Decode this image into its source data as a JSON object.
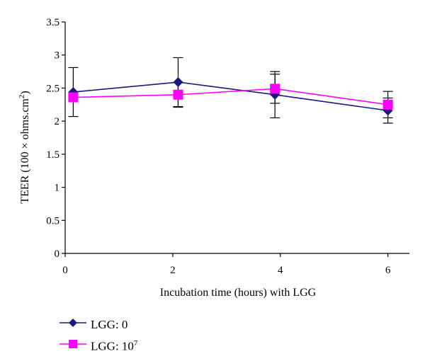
{
  "chart_data": {
    "type": "line",
    "xlabel": "Incubation time (hours) with LGG",
    "ylabel_main": "TEER (100 × ohms.cm",
    "ylabel_sup": "2",
    "ylabel_close": ")",
    "xlim": [
      0,
      6.4
    ],
    "ylim": [
      0,
      3.5
    ],
    "x_ticks": [
      "0",
      "2",
      "4",
      "6"
    ],
    "y_ticks": [
      "0",
      "0.5",
      "1",
      "1.5",
      "2",
      "2.5",
      "3",
      "3.5"
    ],
    "grid": false,
    "legend_position": "bottom-left",
    "series": [
      {
        "name": "LGG: 0",
        "color": "#1a1a7a",
        "marker": "diamond",
        "x": [
          0.15,
          2.1,
          3.9,
          6
        ],
        "y": [
          2.44,
          2.59,
          2.4,
          2.16
        ],
        "err": [
          0.37,
          0.37,
          0.35,
          0.19
        ]
      },
      {
        "name": "LGG: 10",
        "name_sup": "7",
        "color": "#ff00ff",
        "marker": "square",
        "x": [
          0.15,
          2.1,
          3.9,
          6
        ],
        "y": [
          2.36,
          2.4,
          2.49,
          2.25
        ],
        "err": [
          0.0,
          0.19,
          0.22,
          0.2
        ]
      }
    ]
  }
}
